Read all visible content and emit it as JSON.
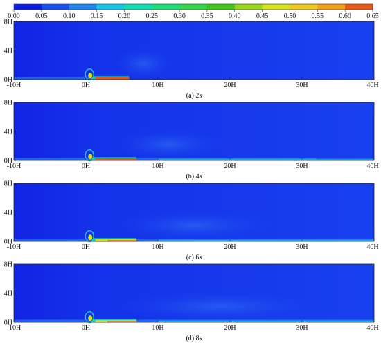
{
  "chart_data": {
    "type": "heatmap",
    "colorbar": {
      "ticks": [
        "0.00",
        "0.05",
        "0.10",
        "0.15",
        "0.20",
        "0.25",
        "0.30",
        "0.35",
        "0.40",
        "0.45",
        "0.50",
        "0.55",
        "0.60",
        "0.65"
      ],
      "range": [
        0.0,
        0.65
      ],
      "colors": [
        "#0a1ee6",
        "#1550f0",
        "#1f86f0",
        "#12c8e8",
        "#10e0b4",
        "#1ee07a",
        "#34d84a",
        "#40c81e",
        "#98d81a",
        "#d8e21a",
        "#f0c81e",
        "#f2a01a",
        "#ec5a18"
      ]
    },
    "panels": [
      {
        "caption": "(a) 2s",
        "xticks": [
          "-10H",
          "0H",
          "10H",
          "20H",
          "30H",
          "40H"
        ],
        "yticks": [
          "0H",
          "4H",
          "8H"
        ],
        "xlim": [
          -10,
          40
        ],
        "ylim": [
          0,
          8
        ]
      },
      {
        "caption": "(b) 4s",
        "xticks": [
          "-10H",
          "0H",
          "10H",
          "20H",
          "30H",
          "40H"
        ],
        "yticks": [
          "0H",
          "4H",
          "8H"
        ],
        "xlim": [
          -10,
          40
        ],
        "ylim": [
          0,
          8
        ]
      },
      {
        "caption": "(c) 6s",
        "xticks": [
          "-10H",
          "0H",
          "10H",
          "20H",
          "30H",
          "40H"
        ],
        "yticks": [
          "0H",
          "4H",
          "8H"
        ],
        "xlim": [
          -10,
          40
        ],
        "ylim": [
          0,
          8
        ]
      },
      {
        "caption": "(d) 8s",
        "xticks": [
          "-10H",
          "0H",
          "10H",
          "20H",
          "30H",
          "40H"
        ],
        "yticks": [
          "0H",
          "4H",
          "8H"
        ],
        "xlim": [
          -10,
          40
        ],
        "ylim": [
          0,
          8
        ]
      }
    ]
  }
}
